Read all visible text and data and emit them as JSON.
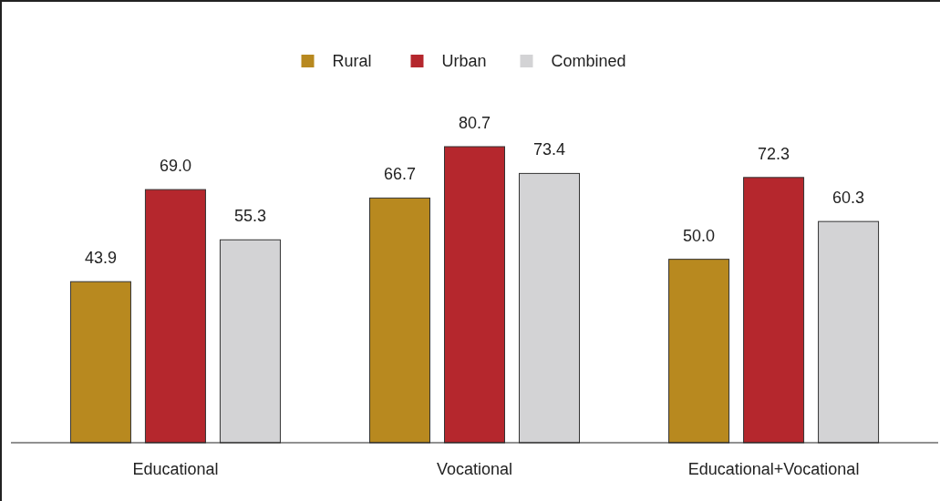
{
  "chart_data": {
    "type": "bar",
    "categories": [
      "Educational",
      "Vocational",
      "Educational+Vocational"
    ],
    "series": [
      {
        "name": "Rural",
        "color": "#b8891f",
        "values": [
          43.9,
          66.7,
          50
        ],
        "value_labels": [
          "43.9",
          "66.7",
          "50.0"
        ]
      },
      {
        "name": "Urban",
        "color": "#b5272d",
        "values": [
          69,
          80.7,
          72.3
        ],
        "value_labels": [
          "69.0",
          "80.7",
          "72.3"
        ]
      },
      {
        "name": "Combined",
        "color": "#d3d3d5",
        "values": [
          55.3,
          73.4,
          60.3
        ],
        "value_labels": [
          "55.3",
          "73.4",
          "60.3"
        ]
      }
    ],
    "legend": "top",
    "grid": false
  }
}
